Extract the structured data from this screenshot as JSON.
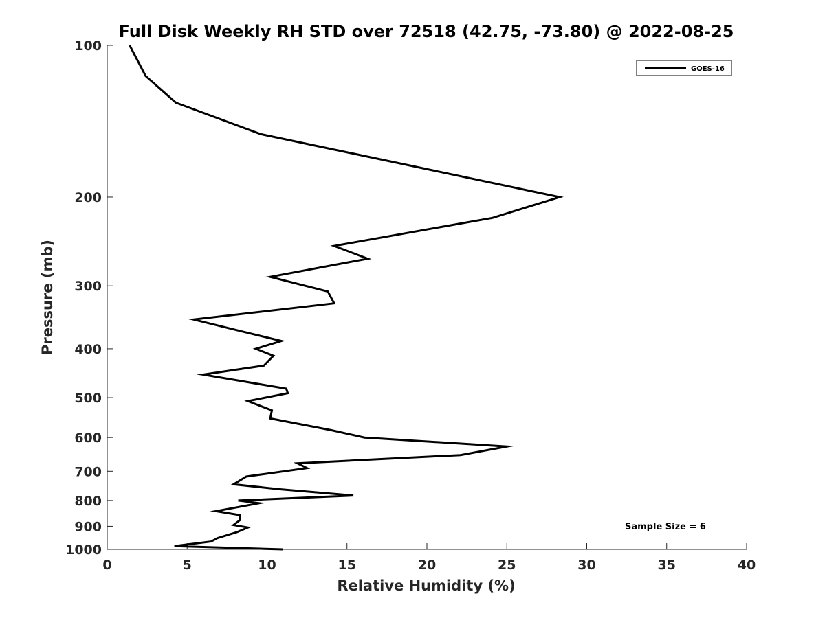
{
  "chart_data": {
    "type": "line",
    "title": "Full Disk Weekly RH STD over 72518 (42.75, -73.80) @ 2022-08-25",
    "xlabel": "Relative Humidity (%)",
    "ylabel": "Pressure (mb)",
    "xlim": [
      0,
      40
    ],
    "ylim": [
      100,
      1000
    ],
    "yscale": "log",
    "y_reversed": true,
    "x_ticks": [
      0,
      5,
      10,
      15,
      20,
      25,
      30,
      35,
      40
    ],
    "y_ticks": [
      100,
      200,
      300,
      400,
      500,
      600,
      700,
      800,
      900,
      1000
    ],
    "legend": {
      "position": "top-right",
      "entries": [
        "GOES-16"
      ]
    },
    "annotation": "Sample Size = 6",
    "series": [
      {
        "name": "GOES-16",
        "color": "#000000",
        "x": [
          1.4,
          2.4,
          4.3,
          9.6,
          28.3,
          24.1,
          14.2,
          16.3,
          10.2,
          13.8,
          14.2,
          5.4,
          8.5,
          10.9,
          9.3,
          10.4,
          9.8,
          6.0,
          11.2,
          11.3,
          8.8,
          10.3,
          10.2,
          14.0,
          16.1,
          25.0,
          22.1,
          11.9,
          12.5,
          8.7,
          7.9,
          10.8,
          15.4,
          8.2,
          9.5,
          6.8,
          8.3,
          8.3,
          7.9,
          8.8,
          8.1,
          6.9,
          6.5,
          4.2,
          11.0
        ],
        "y": [
          100,
          115,
          130,
          150,
          200,
          220,
          250,
          265,
          288,
          308,
          325,
          350,
          370,
          386,
          400,
          413,
          432,
          450,
          480,
          490,
          508,
          530,
          550,
          580,
          600,
          625,
          650,
          675,
          690,
          717,
          743,
          760,
          782,
          800,
          810,
          840,
          855,
          875,
          895,
          905,
          925,
          950,
          965,
          985,
          1000
        ]
      }
    ]
  }
}
